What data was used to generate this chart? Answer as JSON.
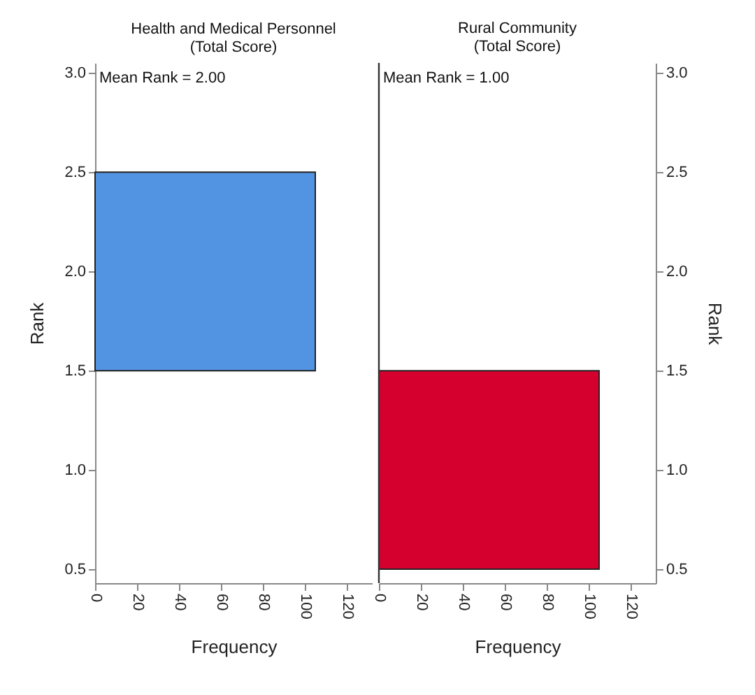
{
  "chart_data": [
    {
      "type": "histogram",
      "orientation": "horizontal",
      "title": "Health and Medical Personnel\n(Total Score)",
      "xlabel": "Frequency",
      "ylabel": "Rank",
      "annotations": [
        "Mean Rank = 2.00"
      ],
      "bins": [
        0.5,
        1.5,
        2.5
      ],
      "values": [
        0,
        105
      ],
      "color": "#5294e2",
      "xlim": [
        0,
        132
      ],
      "xticks": [
        0,
        20,
        40,
        60,
        80,
        100,
        120
      ],
      "ylim": [
        0.43,
        3.05
      ],
      "yticks": [
        0.5,
        {
          "value": 1,
          "label": "1.0"
        },
        1.5,
        {
          "value": 2,
          "label": "2.0"
        },
        2.5,
        {
          "value": 3,
          "label": "3.0"
        }
      ]
    },
    {
      "type": "histogram",
      "orientation": "horizontal",
      "title": "Rural Community\n(Total Score)",
      "xlabel": "Frequency",
      "ylabel": "Rank",
      "annotations": [
        "Mean Rank = 1.00"
      ],
      "bins": [
        0.5,
        1.5,
        2.5
      ],
      "values": [
        105,
        0
      ],
      "color": "#d6002f",
      "xlim": [
        0,
        132
      ],
      "xticks": [
        0,
        20,
        40,
        60,
        80,
        100,
        120
      ],
      "ylim": [
        0.43,
        3.05
      ],
      "yticks": [
        0.5,
        {
          "value": 1,
          "label": "1.0"
        },
        1.5,
        {
          "value": 2,
          "label": "2.0"
        },
        2.5,
        {
          "value": 3,
          "label": "3.0"
        }
      ]
    }
  ]
}
